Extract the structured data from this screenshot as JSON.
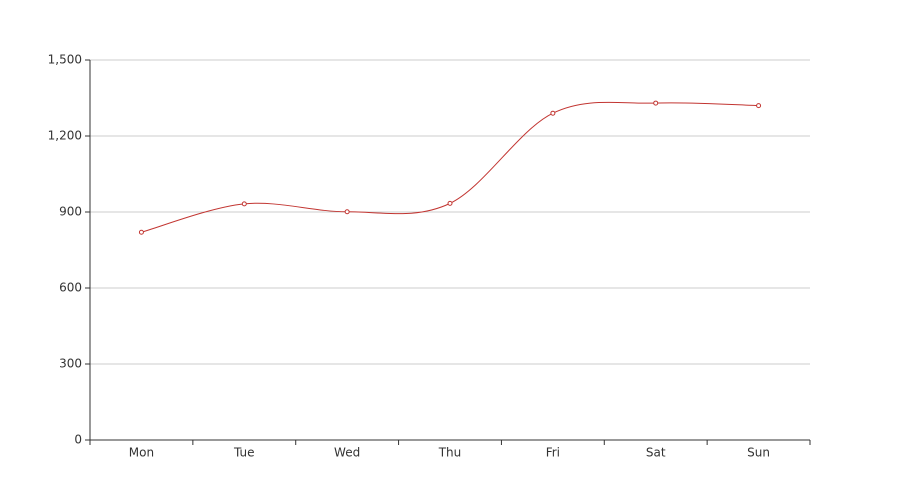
{
  "chart_data": {
    "type": "line",
    "categories": [
      "Mon",
      "Tue",
      "Wed",
      "Thu",
      "Fri",
      "Sat",
      "Sun"
    ],
    "values": [
      820,
      932,
      901,
      934,
      1290,
      1330,
      1320
    ],
    "color": "#c23531",
    "smooth": true,
    "ylim": [
      0,
      1500
    ],
    "yticks": [
      0,
      300,
      600,
      900,
      {
        "value": 1200,
        "label": "1,200"
      },
      {
        "value": 1500,
        "label": "1,500"
      }
    ],
    "grid": true
  }
}
